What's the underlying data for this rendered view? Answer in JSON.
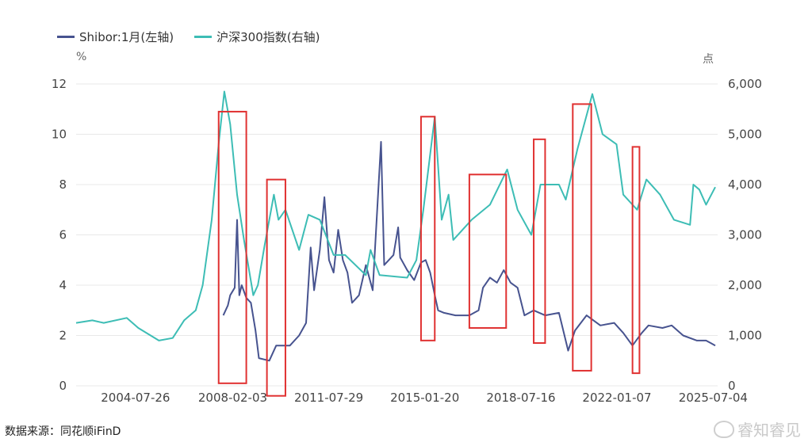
{
  "legend": {
    "series1": "Shibor:1月(左轴)",
    "series2": "沪深300指数(右轴)"
  },
  "units": {
    "left": "%",
    "right": "点"
  },
  "source": "数据来源：同花顺iFinD",
  "watermark": "睿知睿见",
  "colors": {
    "shibor": "#47538f",
    "hs300": "#3dbdb5",
    "box": "#e03131",
    "grid": "#e8e8e8",
    "axis_text": "#444444"
  },
  "chart_data": {
    "type": "line",
    "x_range": [
      "2002-06-01",
      "2025-09-01"
    ],
    "x_ticks": [
      "2004-07-26",
      "2008-02-03",
      "2011-07-29",
      "2015-01-20",
      "2018-07-16",
      "2022-01-07",
      "2025-07-04"
    ],
    "y_left": {
      "lim": [
        0,
        12
      ],
      "ticks": [
        "0",
        "2",
        "4",
        "6",
        "8",
        "10",
        "12"
      ]
    },
    "y_right": {
      "lim": [
        0,
        6000
      ],
      "ticks": [
        "0",
        "1,000",
        "2,000",
        "3,000",
        "4,000",
        "5,000",
        "6,000"
      ]
    },
    "grid": true,
    "legend_position": "top-left",
    "series": [
      {
        "name": "Shibor:1月(左轴)",
        "axis": "left",
        "points": [
          [
            "2007-10-01",
            2.8
          ],
          [
            "2007-12-01",
            3.2
          ],
          [
            "2008-01-01",
            3.6
          ],
          [
            "2008-03-01",
            3.9
          ],
          [
            "2008-04-01",
            6.6
          ],
          [
            "2008-05-01",
            3.6
          ],
          [
            "2008-06-01",
            4.0
          ],
          [
            "2008-08-01",
            3.5
          ],
          [
            "2008-10-01",
            3.3
          ],
          [
            "2008-12-01",
            2.2
          ],
          [
            "2009-01-15",
            1.1
          ],
          [
            "2009-06-01",
            1.0
          ],
          [
            "2009-09-01",
            1.6
          ],
          [
            "2010-03-01",
            1.6
          ],
          [
            "2010-07-01",
            2.0
          ],
          [
            "2010-10-01",
            2.5
          ],
          [
            "2010-12-01",
            5.5
          ],
          [
            "2011-01-15",
            3.8
          ],
          [
            "2011-04-01",
            5.4
          ],
          [
            "2011-06-01",
            7.5
          ],
          [
            "2011-08-01",
            5.0
          ],
          [
            "2011-10-01",
            4.5
          ],
          [
            "2011-12-01",
            6.2
          ],
          [
            "2012-02-01",
            5.0
          ],
          [
            "2012-04-01",
            4.5
          ],
          [
            "2012-06-01",
            3.3
          ],
          [
            "2012-09-01",
            3.6
          ],
          [
            "2012-12-01",
            4.8
          ],
          [
            "2013-03-01",
            3.8
          ],
          [
            "2013-06-20",
            9.7
          ],
          [
            "2013-08-01",
            4.8
          ],
          [
            "2013-12-01",
            5.2
          ],
          [
            "2014-02-01",
            6.3
          ],
          [
            "2014-03-01",
            5.1
          ],
          [
            "2014-06-01",
            4.6
          ],
          [
            "2014-09-01",
            4.2
          ],
          [
            "2014-12-01",
            4.9
          ],
          [
            "2015-02-01",
            5.0
          ],
          [
            "2015-04-01",
            4.5
          ],
          [
            "2015-06-01",
            3.6
          ],
          [
            "2015-07-15",
            3.0
          ],
          [
            "2015-10-01",
            2.9
          ],
          [
            "2016-03-01",
            2.8
          ],
          [
            "2016-09-01",
            2.8
          ],
          [
            "2017-01-01",
            3.0
          ],
          [
            "2017-03-01",
            3.9
          ],
          [
            "2017-06-01",
            4.3
          ],
          [
            "2017-09-01",
            4.1
          ],
          [
            "2017-12-01",
            4.6
          ],
          [
            "2018-03-01",
            4.1
          ],
          [
            "2018-06-01",
            3.9
          ],
          [
            "2018-09-01",
            2.8
          ],
          [
            "2019-01-01",
            3.0
          ],
          [
            "2019-06-01",
            2.8
          ],
          [
            "2019-12-01",
            2.9
          ],
          [
            "2020-04-01",
            1.4
          ],
          [
            "2020-07-01",
            2.2
          ],
          [
            "2020-12-01",
            2.8
          ],
          [
            "2021-06-01",
            2.4
          ],
          [
            "2021-12-01",
            2.5
          ],
          [
            "2022-04-01",
            2.1
          ],
          [
            "2022-08-01",
            1.6
          ],
          [
            "2022-12-01",
            2.1
          ],
          [
            "2023-03-01",
            2.4
          ],
          [
            "2023-09-01",
            2.3
          ],
          [
            "2024-01-01",
            2.4
          ],
          [
            "2024-06-01",
            2.0
          ],
          [
            "2024-12-01",
            1.8
          ],
          [
            "2025-04-01",
            1.8
          ],
          [
            "2025-06-01",
            1.7
          ],
          [
            "2025-08-01",
            1.6
          ]
        ]
      },
      {
        "name": "沪深300指数(右轴)",
        "axis": "right",
        "points": [
          [
            "2002-06-01",
            1250
          ],
          [
            "2003-01-01",
            1300
          ],
          [
            "2003-06-01",
            1250
          ],
          [
            "2004-04-01",
            1350
          ],
          [
            "2004-09-01",
            1150
          ],
          [
            "2005-06-01",
            900
          ],
          [
            "2005-12-01",
            950
          ],
          [
            "2006-05-01",
            1300
          ],
          [
            "2006-10-01",
            1500
          ],
          [
            "2007-01-01",
            2000
          ],
          [
            "2007-05-01",
            3300
          ],
          [
            "2007-08-01",
            4800
          ],
          [
            "2007-10-15",
            5850
          ],
          [
            "2008-01-01",
            5200
          ],
          [
            "2008-04-01",
            3800
          ],
          [
            "2008-07-01",
            2900
          ],
          [
            "2008-11-01",
            1800
          ],
          [
            "2009-01-01",
            2000
          ],
          [
            "2009-04-01",
            2800
          ],
          [
            "2009-08-01",
            3800
          ],
          [
            "2009-10-01",
            3300
          ],
          [
            "2010-01-01",
            3500
          ],
          [
            "2010-07-01",
            2700
          ],
          [
            "2010-11-01",
            3400
          ],
          [
            "2011-04-01",
            3300
          ],
          [
            "2011-10-01",
            2600
          ],
          [
            "2012-03-01",
            2600
          ],
          [
            "2012-12-01",
            2200
          ],
          [
            "2013-02-01",
            2700
          ],
          [
            "2013-06-01",
            2200
          ],
          [
            "2014-06-01",
            2150
          ],
          [
            "2014-10-01",
            2500
          ],
          [
            "2015-01-01",
            3500
          ],
          [
            "2015-06-01",
            5350
          ],
          [
            "2015-09-01",
            3300
          ],
          [
            "2015-12-01",
            3800
          ],
          [
            "2016-02-01",
            2900
          ],
          [
            "2016-10-01",
            3300
          ],
          [
            "2017-06-01",
            3600
          ],
          [
            "2018-01-15",
            4300
          ],
          [
            "2018-06-01",
            3500
          ],
          [
            "2018-12-01",
            3000
          ],
          [
            "2019-04-01",
            4000
          ],
          [
            "2019-12-01",
            4000
          ],
          [
            "2020-03-01",
            3700
          ],
          [
            "2020-08-01",
            4700
          ],
          [
            "2021-02-15",
            5800
          ],
          [
            "2021-07-01",
            5000
          ],
          [
            "2022-01-01",
            4800
          ],
          [
            "2022-04-01",
            3800
          ],
          [
            "2022-10-01",
            3500
          ],
          [
            "2023-02-01",
            4100
          ],
          [
            "2023-08-01",
            3800
          ],
          [
            "2024-02-01",
            3300
          ],
          [
            "2024-09-01",
            3200
          ],
          [
            "2024-10-15",
            4000
          ],
          [
            "2025-01-01",
            3900
          ],
          [
            "2025-04-01",
            3600
          ],
          [
            "2025-08-01",
            3950
          ]
        ]
      }
    ],
    "highlight_periods": [
      {
        "start": "2007-08-01",
        "end": "2008-08-01",
        "y_bottom": 0.1,
        "y_top": 10.9
      },
      {
        "start": "2009-05-01",
        "end": "2010-01-01",
        "y_bottom": -0.4,
        "y_top": 8.2
      },
      {
        "start": "2014-12-01",
        "end": "2015-06-01",
        "y_bottom": 1.8,
        "y_top": 10.7
      },
      {
        "start": "2016-09-01",
        "end": "2018-01-01",
        "y_bottom": 2.3,
        "y_top": 8.4
      },
      {
        "start": "2019-01-01",
        "end": "2019-06-01",
        "y_bottom": 1.7,
        "y_top": 9.8
      },
      {
        "start": "2020-06-01",
        "end": "2021-02-01",
        "y_bottom": 0.6,
        "y_top": 11.2
      },
      {
        "start": "2022-08-01",
        "end": "2022-11-01",
        "y_bottom": 0.5,
        "y_top": 9.5
      }
    ]
  }
}
